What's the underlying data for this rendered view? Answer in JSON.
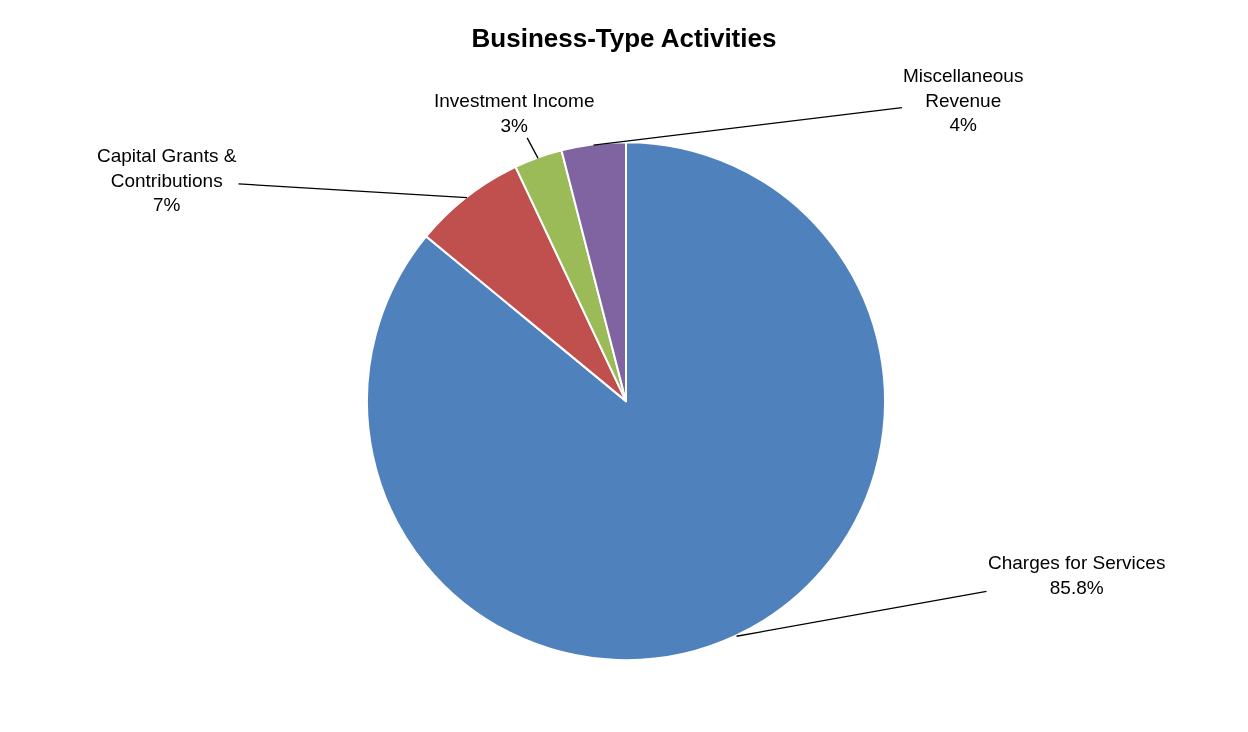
{
  "chart_data": {
    "type": "pie",
    "title": "Business-Type Activities",
    "categories": [
      "Charges for Services",
      "Capital Grants &\nContributions",
      "Investment Income",
      "Miscellaneous\nRevenue"
    ],
    "values": [
      85.8,
      7,
      3,
      4
    ],
    "value_labels": [
      "85.8%",
      "7%",
      "3%",
      "4%"
    ],
    "colors": [
      "#4f81bd",
      "#c0504d",
      "#9bbb59",
      "#8064a2"
    ],
    "legend": false
  }
}
